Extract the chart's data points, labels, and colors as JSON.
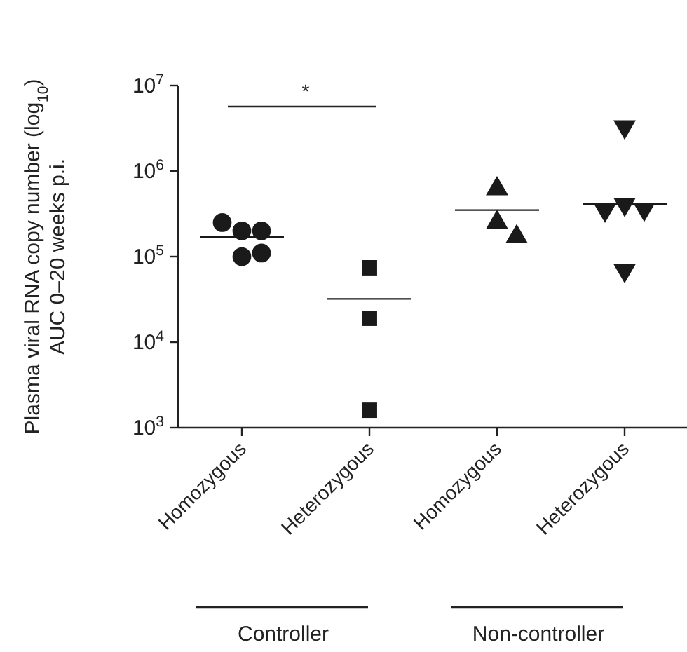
{
  "chart_data": {
    "type": "scatter",
    "ylabel": "Plasma viral RNA copy number (log$_{10}$)\nAUC 0–20 weeks p.i.",
    "categories": [
      "Homozygous",
      "Heterozygous",
      "Homozygous",
      "Heterozygous"
    ],
    "log": true,
    "ylim": [
      1000,
      10000000
    ],
    "yticks": [
      {
        "value": 1000,
        "label": "10$^{3}$"
      },
      {
        "value": 10000,
        "label": "10$^{4}$"
      },
      {
        "value": 100000,
        "label": "10$^{5}$"
      },
      {
        "value": 1000000,
        "label": "10$^{6}$"
      },
      {
        "value": 10000000,
        "label": "10$^{7}$"
      }
    ],
    "grid": false,
    "series": [
      {
        "type": "scatter",
        "marker": "circle",
        "color": "#1a1a1a",
        "values": [
          200000,
          null,
          null,
          null
        ]
      },
      {
        "type": "scatter",
        "marker": "circle",
        "color": "#1a1a1a",
        "values": [
          200000,
          null,
          null,
          null
        ]
      },
      {
        "type": "scatter",
        "marker": "circle",
        "color": "#1a1a1a",
        "values": [
          250000,
          null,
          null,
          null
        ]
      },
      {
        "type": "scatter",
        "marker": "circle",
        "color": "#1a1a1a",
        "values": [
          100000,
          null,
          null,
          null
        ]
      },
      {
        "type": "scatter",
        "marker": "circle",
        "color": "#1a1a1a",
        "values": [
          110000,
          null,
          null,
          null
        ]
      },
      {
        "type": "scatter",
        "marker": "square",
        "color": "#1a1a1a",
        "values": [
          null,
          74000,
          null,
          null
        ]
      },
      {
        "type": "scatter",
        "marker": "square",
        "color": "#1a1a1a",
        "values": [
          null,
          19000,
          null,
          null
        ]
      },
      {
        "type": "scatter",
        "marker": "square",
        "color": "#1a1a1a",
        "values": [
          null,
          1600,
          null,
          null
        ]
      },
      {
        "type": "scatter",
        "marker": "triangle",
        "color": "#1a1a1a",
        "values": [
          null,
          null,
          620000,
          null
        ]
      },
      {
        "type": "scatter",
        "marker": "triangle",
        "color": "#1a1a1a",
        "values": [
          null,
          null,
          250000,
          null
        ]
      },
      {
        "type": "scatter",
        "marker": "triangle",
        "color": "#1a1a1a",
        "values": [
          null,
          null,
          170000,
          null
        ]
      },
      {
        "type": "scatter",
        "marker": "triangle-down",
        "color": "#1a1a1a",
        "values": [
          null,
          null,
          null,
          3300000
        ]
      },
      {
        "type": "scatter",
        "marker": "triangle-down",
        "color": "#1a1a1a",
        "values": [
          null,
          null,
          null,
          410000
        ]
      },
      {
        "type": "scatter",
        "marker": "triangle-down",
        "color": "#1a1a1a",
        "values": [
          null,
          null,
          null,
          360000
        ]
      },
      {
        "type": "scatter",
        "marker": "triangle-down",
        "color": "#1a1a1a",
        "values": [
          null,
          null,
          null,
          350000
        ]
      },
      {
        "type": "scatter",
        "marker": "triangle-down",
        "color": "#1a1a1a",
        "values": [
          null,
          null,
          null,
          69000
        ]
      },
      {
        "type": "box",
        "color": "#1a1a1a",
        "boxes": [
          {
            "low": 170000,
            "q1": 170000,
            "median": 170000,
            "q3": 170000,
            "high": 170000
          },
          {
            "low": 32000,
            "q1": 32000,
            "median": 32000,
            "q3": 32000,
            "high": 32000
          },
          {
            "low": 350000,
            "q1": 350000,
            "median": 350000,
            "q3": 350000,
            "high": 350000
          },
          {
            "low": 410000,
            "q1": 410000,
            "median": 410000,
            "q3": 410000,
            "high": 410000
          }
        ]
      }
    ],
    "annotations": [
      "*",
      "Controller",
      "Non-controller"
    ]
  }
}
